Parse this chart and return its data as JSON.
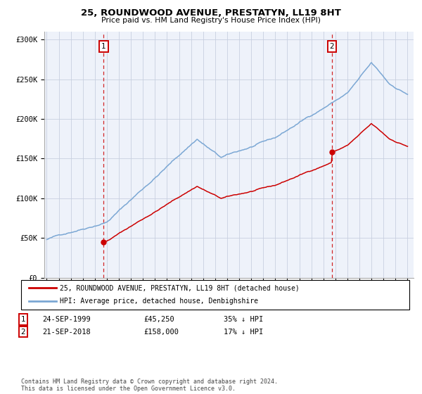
{
  "title": "25, ROUNDWOOD AVENUE, PRESTATYN, LL19 8HT",
  "subtitle": "Price paid vs. HM Land Registry's House Price Index (HPI)",
  "hpi_color": "#7ba7d4",
  "price_color": "#cc0000",
  "dashed_line_color": "#cc0000",
  "background_color": "#eef2fa",
  "grid_color": "#c8d0e0",
  "ylim": [
    0,
    310000
  ],
  "yticks": [
    0,
    50000,
    100000,
    150000,
    200000,
    250000,
    300000
  ],
  "ytick_labels": [
    "£0",
    "£50K",
    "£100K",
    "£150K",
    "£200K",
    "£250K",
    "£300K"
  ],
  "transaction1_year": 1999.73,
  "transaction1_price": 45250,
  "transaction2_year": 2018.72,
  "transaction2_price": 158000,
  "legend_label_price": "25, ROUNDWOOD AVENUE, PRESTATYN, LL19 8HT (detached house)",
  "legend_label_hpi": "HPI: Average price, detached house, Denbighshire",
  "annotation1_date": "24-SEP-1999",
  "annotation1_price": "£45,250",
  "annotation1_pct": "35% ↓ HPI",
  "annotation2_date": "21-SEP-2018",
  "annotation2_price": "£158,000",
  "annotation2_pct": "17% ↓ HPI",
  "footer": "Contains HM Land Registry data © Crown copyright and database right 2024.\nThis data is licensed under the Open Government Licence v3.0.",
  "xlim_left": 1994.8,
  "xlim_right": 2025.5
}
